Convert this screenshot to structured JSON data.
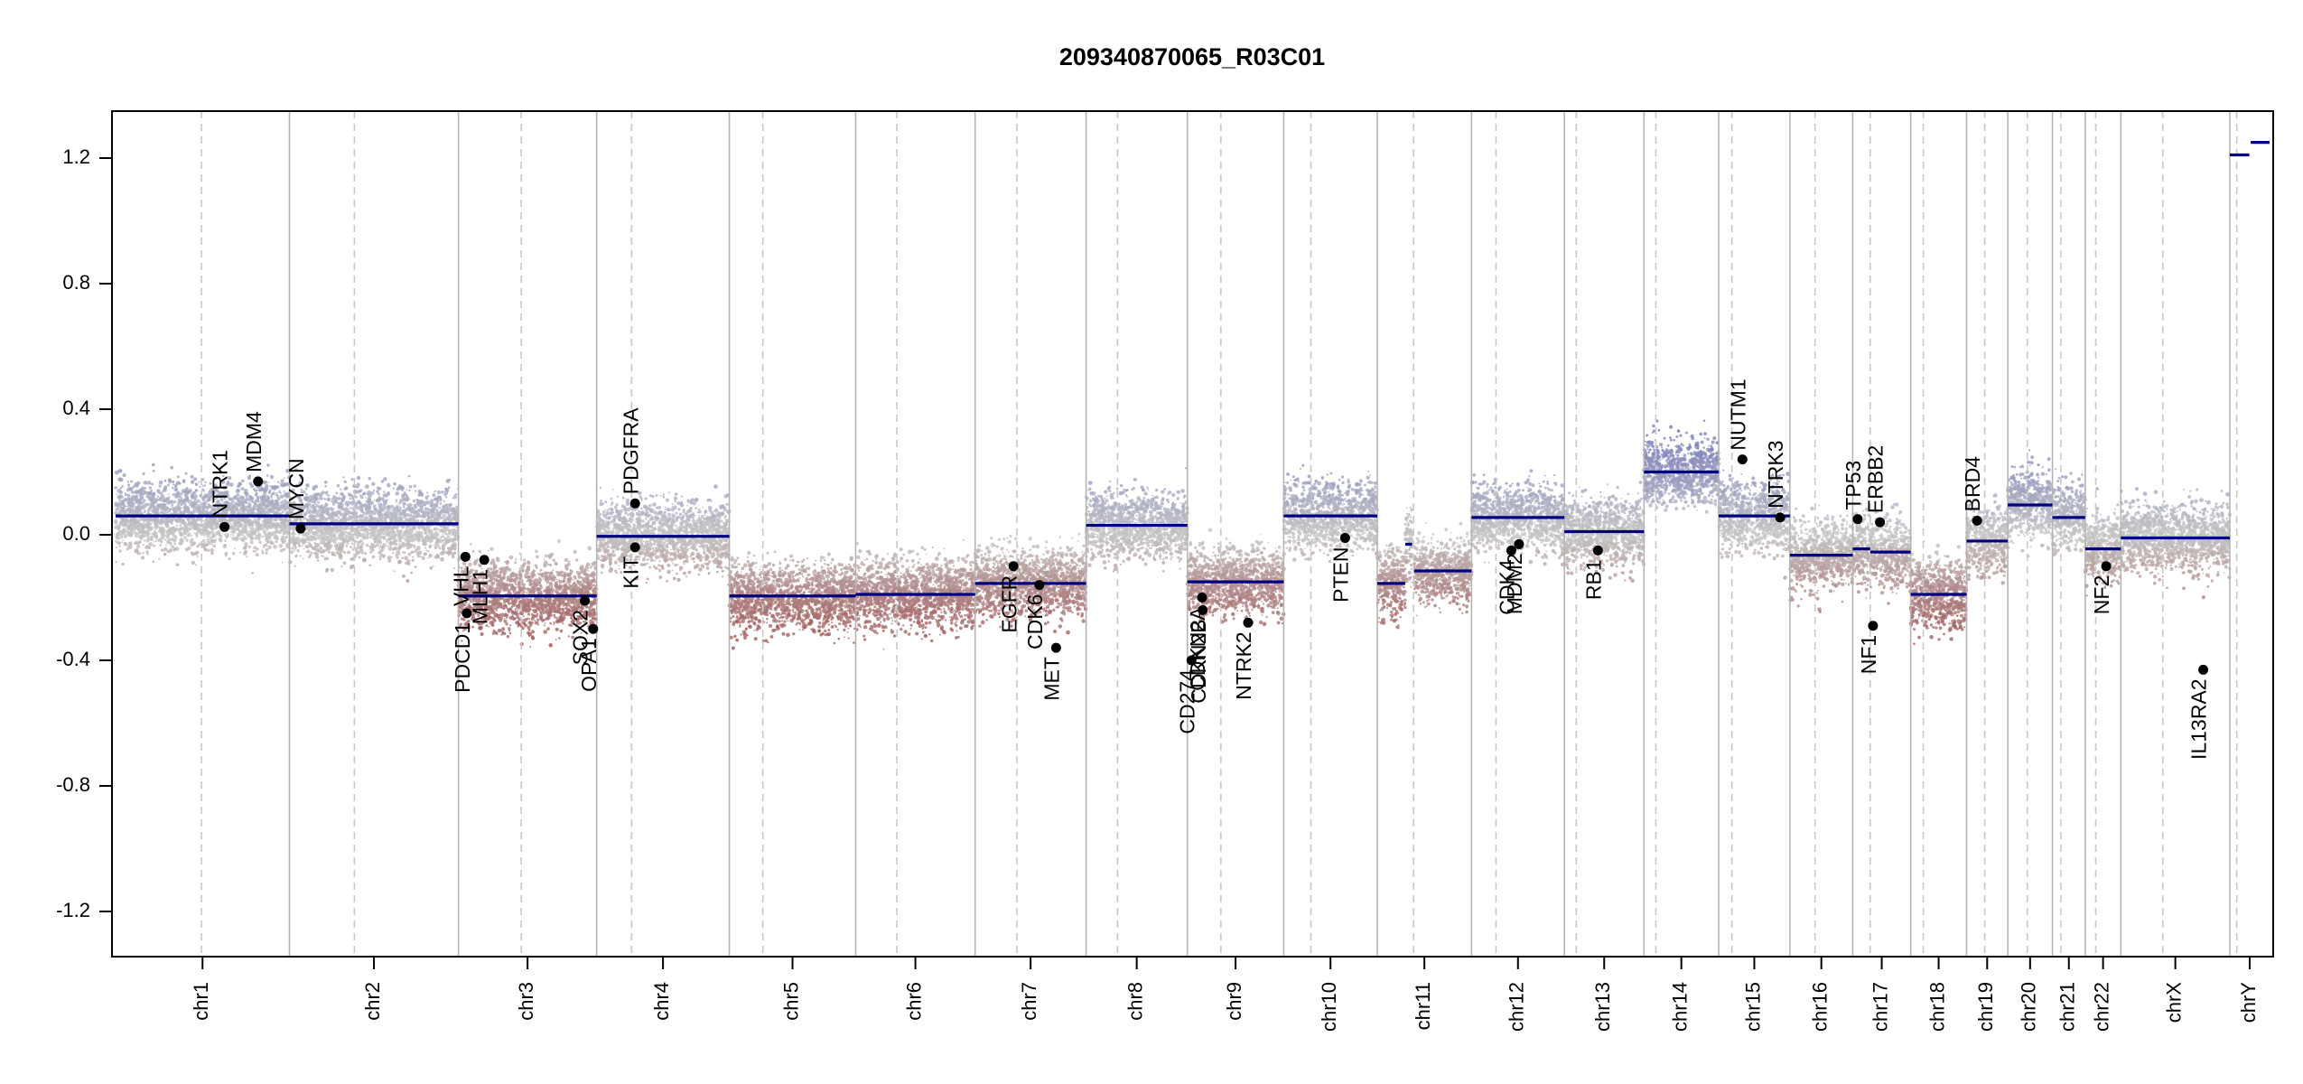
{
  "chart_data": {
    "type": "scatter",
    "title": "209340870065_R03C01",
    "xlabel": "",
    "ylabel": "",
    "ylim": [
      -1.35,
      1.35
    ],
    "yticks": [
      -1.2,
      -0.8,
      -0.4,
      0.0,
      0.4,
      0.8,
      1.2
    ],
    "ytick_labels": [
      "-1.2",
      "-0.8",
      "-0.4",
      "0.0",
      "0.4",
      "0.8",
      "1.2"
    ],
    "grid": false,
    "legend": "none",
    "colors": {
      "gain": "#6f74b8",
      "neutral": "#c4c4c4",
      "loss": "#8b1a1a",
      "segment": "#000080",
      "gene_dot": "#000000",
      "chrom_boundary": "#b4b4b4",
      "centromere": "#c8c8c8"
    },
    "chromosomes": [
      {
        "name": "chr1",
        "size": 249,
        "cen": 123
      },
      {
        "name": "chr2",
        "size": 242,
        "cen": 93
      },
      {
        "name": "chr3",
        "size": 198,
        "cen": 90
      },
      {
        "name": "chr4",
        "size": 190,
        "cen": 50
      },
      {
        "name": "chr5",
        "size": 181,
        "cen": 48
      },
      {
        "name": "chr6",
        "size": 171,
        "cen": 59
      },
      {
        "name": "chr7",
        "size": 159,
        "cen": 60
      },
      {
        "name": "chr8",
        "size": 145,
        "cen": 45
      },
      {
        "name": "chr9",
        "size": 138,
        "cen": 48
      },
      {
        "name": "chr10",
        "size": 134,
        "cen": 39
      },
      {
        "name": "chr11",
        "size": 135,
        "cen": 52
      },
      {
        "name": "chr12",
        "size": 133,
        "cen": 35
      },
      {
        "name": "chr13",
        "size": 114,
        "cen": 17
      },
      {
        "name": "chr14",
        "size": 107,
        "cen": 17
      },
      {
        "name": "chr15",
        "size": 102,
        "cen": 19
      },
      {
        "name": "chr16",
        "size": 90,
        "cen": 36
      },
      {
        "name": "chr17",
        "size": 83,
        "cen": 25
      },
      {
        "name": "chr18",
        "size": 80,
        "cen": 18
      },
      {
        "name": "chr19",
        "size": 59,
        "cen": 26
      },
      {
        "name": "chr20",
        "size": 64,
        "cen": 28
      },
      {
        "name": "chr21",
        "size": 47,
        "cen": 12
      },
      {
        "name": "chr22",
        "size": 51,
        "cen": 15
      },
      {
        "name": "chrX",
        "size": 156,
        "cen": 60
      },
      {
        "name": "chrY",
        "size": 57,
        "cen": 10
      }
    ],
    "segments": [
      {
        "chr": "chr1",
        "start": 0,
        "end": 249,
        "value": 0.06
      },
      {
        "chr": "chr2",
        "start": 0,
        "end": 242,
        "value": 0.035
      },
      {
        "chr": "chr3",
        "start": 0,
        "end": 198,
        "value": -0.195
      },
      {
        "chr": "chr4",
        "start": 0,
        "end": 190,
        "value": -0.005
      },
      {
        "chr": "chr5",
        "start": 0,
        "end": 181,
        "value": -0.195
      },
      {
        "chr": "chr6",
        "start": 0,
        "end": 171,
        "value": -0.19
      },
      {
        "chr": "chr7",
        "start": 0,
        "end": 159,
        "value": -0.155
      },
      {
        "chr": "chr8",
        "start": 0,
        "end": 145,
        "value": 0.03
      },
      {
        "chr": "chr9",
        "start": 0,
        "end": 138,
        "value": -0.15
      },
      {
        "chr": "chr10",
        "start": 0,
        "end": 134,
        "value": 0.06
      },
      {
        "chr": "chr11",
        "start": 0,
        "end": 40,
        "value": -0.155
      },
      {
        "chr": "chr11",
        "start": 40,
        "end": 50,
        "value": -0.03
      },
      {
        "chr": "chr11",
        "start": 53,
        "end": 135,
        "value": -0.115
      },
      {
        "chr": "chr12",
        "start": 0,
        "end": 133,
        "value": 0.055
      },
      {
        "chr": "chr13",
        "start": 0,
        "end": 114,
        "value": 0.01
      },
      {
        "chr": "chr14",
        "start": 0,
        "end": 107,
        "value": 0.2
      },
      {
        "chr": "chr15",
        "start": 0,
        "end": 102,
        "value": 0.06
      },
      {
        "chr": "chr16",
        "start": 0,
        "end": 90,
        "value": -0.065
      },
      {
        "chr": "chr17",
        "start": 0,
        "end": 25,
        "value": -0.045
      },
      {
        "chr": "chr17",
        "start": 25,
        "end": 83,
        "value": -0.055
      },
      {
        "chr": "chr18",
        "start": 0,
        "end": 80,
        "value": -0.19
      },
      {
        "chr": "chr19",
        "start": 0,
        "end": 59,
        "value": -0.02
      },
      {
        "chr": "chr20",
        "start": 0,
        "end": 64,
        "value": 0.095
      },
      {
        "chr": "chr21",
        "start": 0,
        "end": 47,
        "value": 0.055
      },
      {
        "chr": "chr22",
        "start": 0,
        "end": 51,
        "value": -0.045
      },
      {
        "chr": "chrX",
        "start": 0,
        "end": 156,
        "value": -0.01
      },
      {
        "chr": "chrY",
        "start": 0,
        "end": 28,
        "value": 1.21
      },
      {
        "chr": "chrY",
        "start": 30,
        "end": 57,
        "value": 1.25
      }
    ],
    "genes": [
      {
        "name": "NTRK1",
        "chr": "chr1",
        "pos": 156,
        "value": 0.025
      },
      {
        "name": "MDM4",
        "chr": "chr1",
        "pos": 204,
        "value": 0.17
      },
      {
        "name": "MYCN",
        "chr": "chr2",
        "pos": 16,
        "value": 0.02
      },
      {
        "name": "VHL",
        "chr": "chr3",
        "pos": 10,
        "value": -0.07
      },
      {
        "name": "PDCD1",
        "chr": "chr3",
        "pos": 12,
        "value": -0.25
      },
      {
        "name": "MLH1",
        "chr": "chr3",
        "pos": 37,
        "value": -0.08
      },
      {
        "name": "SOX2",
        "chr": "chr3",
        "pos": 181,
        "value": -0.21
      },
      {
        "name": "OPA1",
        "chr": "chr3",
        "pos": 193,
        "value": -0.3
      },
      {
        "name": "PDGFRA",
        "chr": "chr4",
        "pos": 55,
        "value": 0.1
      },
      {
        "name": "KIT",
        "chr": "chr4",
        "pos": 55,
        "value": -0.04
      },
      {
        "name": "EGFR",
        "chr": "chr7",
        "pos": 55,
        "value": -0.1
      },
      {
        "name": "CDK6",
        "chr": "chr7",
        "pos": 92,
        "value": -0.16
      },
      {
        "name": "MET",
        "chr": "chr7",
        "pos": 116,
        "value": -0.36
      },
      {
        "name": "CD274",
        "chr": "chr9",
        "pos": 6,
        "value": -0.4
      },
      {
        "name": "CDKN2A",
        "chr": "chr9",
        "pos": 21,
        "value": -0.2
      },
      {
        "name": "CDKN2B",
        "chr": "chr9",
        "pos": 22,
        "value": -0.24
      },
      {
        "name": "NTRK2",
        "chr": "chr9",
        "pos": 87,
        "value": -0.28
      },
      {
        "name": "PTEN",
        "chr": "chr10",
        "pos": 88,
        "value": -0.01
      },
      {
        "name": "CDK4",
        "chr": "chr12",
        "pos": 57,
        "value": -0.05
      },
      {
        "name": "MDM2",
        "chr": "chr12",
        "pos": 68,
        "value": -0.03
      },
      {
        "name": "RB1",
        "chr": "chr13",
        "pos": 48,
        "value": -0.05
      },
      {
        "name": "NUTM1",
        "chr": "chr15",
        "pos": 34,
        "value": 0.24
      },
      {
        "name": "NTRK3",
        "chr": "chr15",
        "pos": 88,
        "value": 0.055
      },
      {
        "name": "TP53",
        "chr": "chr17",
        "pos": 7,
        "value": 0.05
      },
      {
        "name": "NF1",
        "chr": "chr17",
        "pos": 29,
        "value": -0.29
      },
      {
        "name": "ERBB2",
        "chr": "chr17",
        "pos": 39,
        "value": 0.04
      },
      {
        "name": "BRD4",
        "chr": "chr19",
        "pos": 15,
        "value": 0.045
      },
      {
        "name": "NF2",
        "chr": "chr22",
        "pos": 30,
        "value": -0.1
      },
      {
        "name": "IL13RA2",
        "chr": "chrX",
        "pos": 118,
        "value": -0.43
      }
    ]
  }
}
